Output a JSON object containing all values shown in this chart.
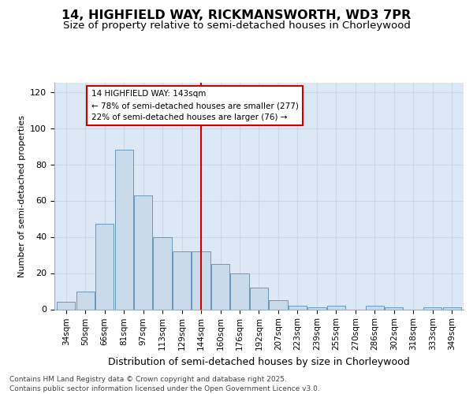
{
  "title_line1": "14, HIGHFIELD WAY, RICKMANSWORTH, WD3 7PR",
  "title_line2": "Size of property relative to semi-detached houses in Chorleywood",
  "xlabel": "Distribution of semi-detached houses by size in Chorleywood",
  "ylabel": "Number of semi-detached properties",
  "categories": [
    "34sqm",
    "50sqm",
    "66sqm",
    "81sqm",
    "97sqm",
    "113sqm",
    "129sqm",
    "144sqm",
    "160sqm",
    "176sqm",
    "192sqm",
    "207sqm",
    "223sqm",
    "239sqm",
    "255sqm",
    "270sqm",
    "286sqm",
    "302sqm",
    "318sqm",
    "333sqm",
    "349sqm"
  ],
  "values": [
    4,
    10,
    47,
    88,
    63,
    40,
    32,
    32,
    25,
    20,
    12,
    5,
    2,
    1,
    2,
    0,
    2,
    1,
    0,
    1,
    1
  ],
  "bar_color": "#c9daea",
  "bar_edge_color": "#6899bb",
  "grid_color": "#ccd8e8",
  "background_color": "#dce8f5",
  "annotation_text_line1": "14 HIGHFIELD WAY: 143sqm",
  "annotation_text_line2": "← 78% of semi-detached houses are smaller (277)",
  "annotation_text_line3": "22% of semi-detached houses are larger (76) →",
  "vline_color": "#cc0000",
  "annotation_box_color": "#cc0000",
  "ylim": [
    0,
    125
  ],
  "yticks": [
    0,
    20,
    40,
    60,
    80,
    100,
    120
  ],
  "footer_text": "Contains HM Land Registry data © Crown copyright and database right 2025.\nContains public sector information licensed under the Open Government Licence v3.0.",
  "title_fontsize": 11.5,
  "subtitle_fontsize": 9.5,
  "xlabel_fontsize": 9,
  "ylabel_fontsize": 8,
  "tick_fontsize": 7.5,
  "annotation_fontsize": 7.5,
  "footer_fontsize": 6.5
}
